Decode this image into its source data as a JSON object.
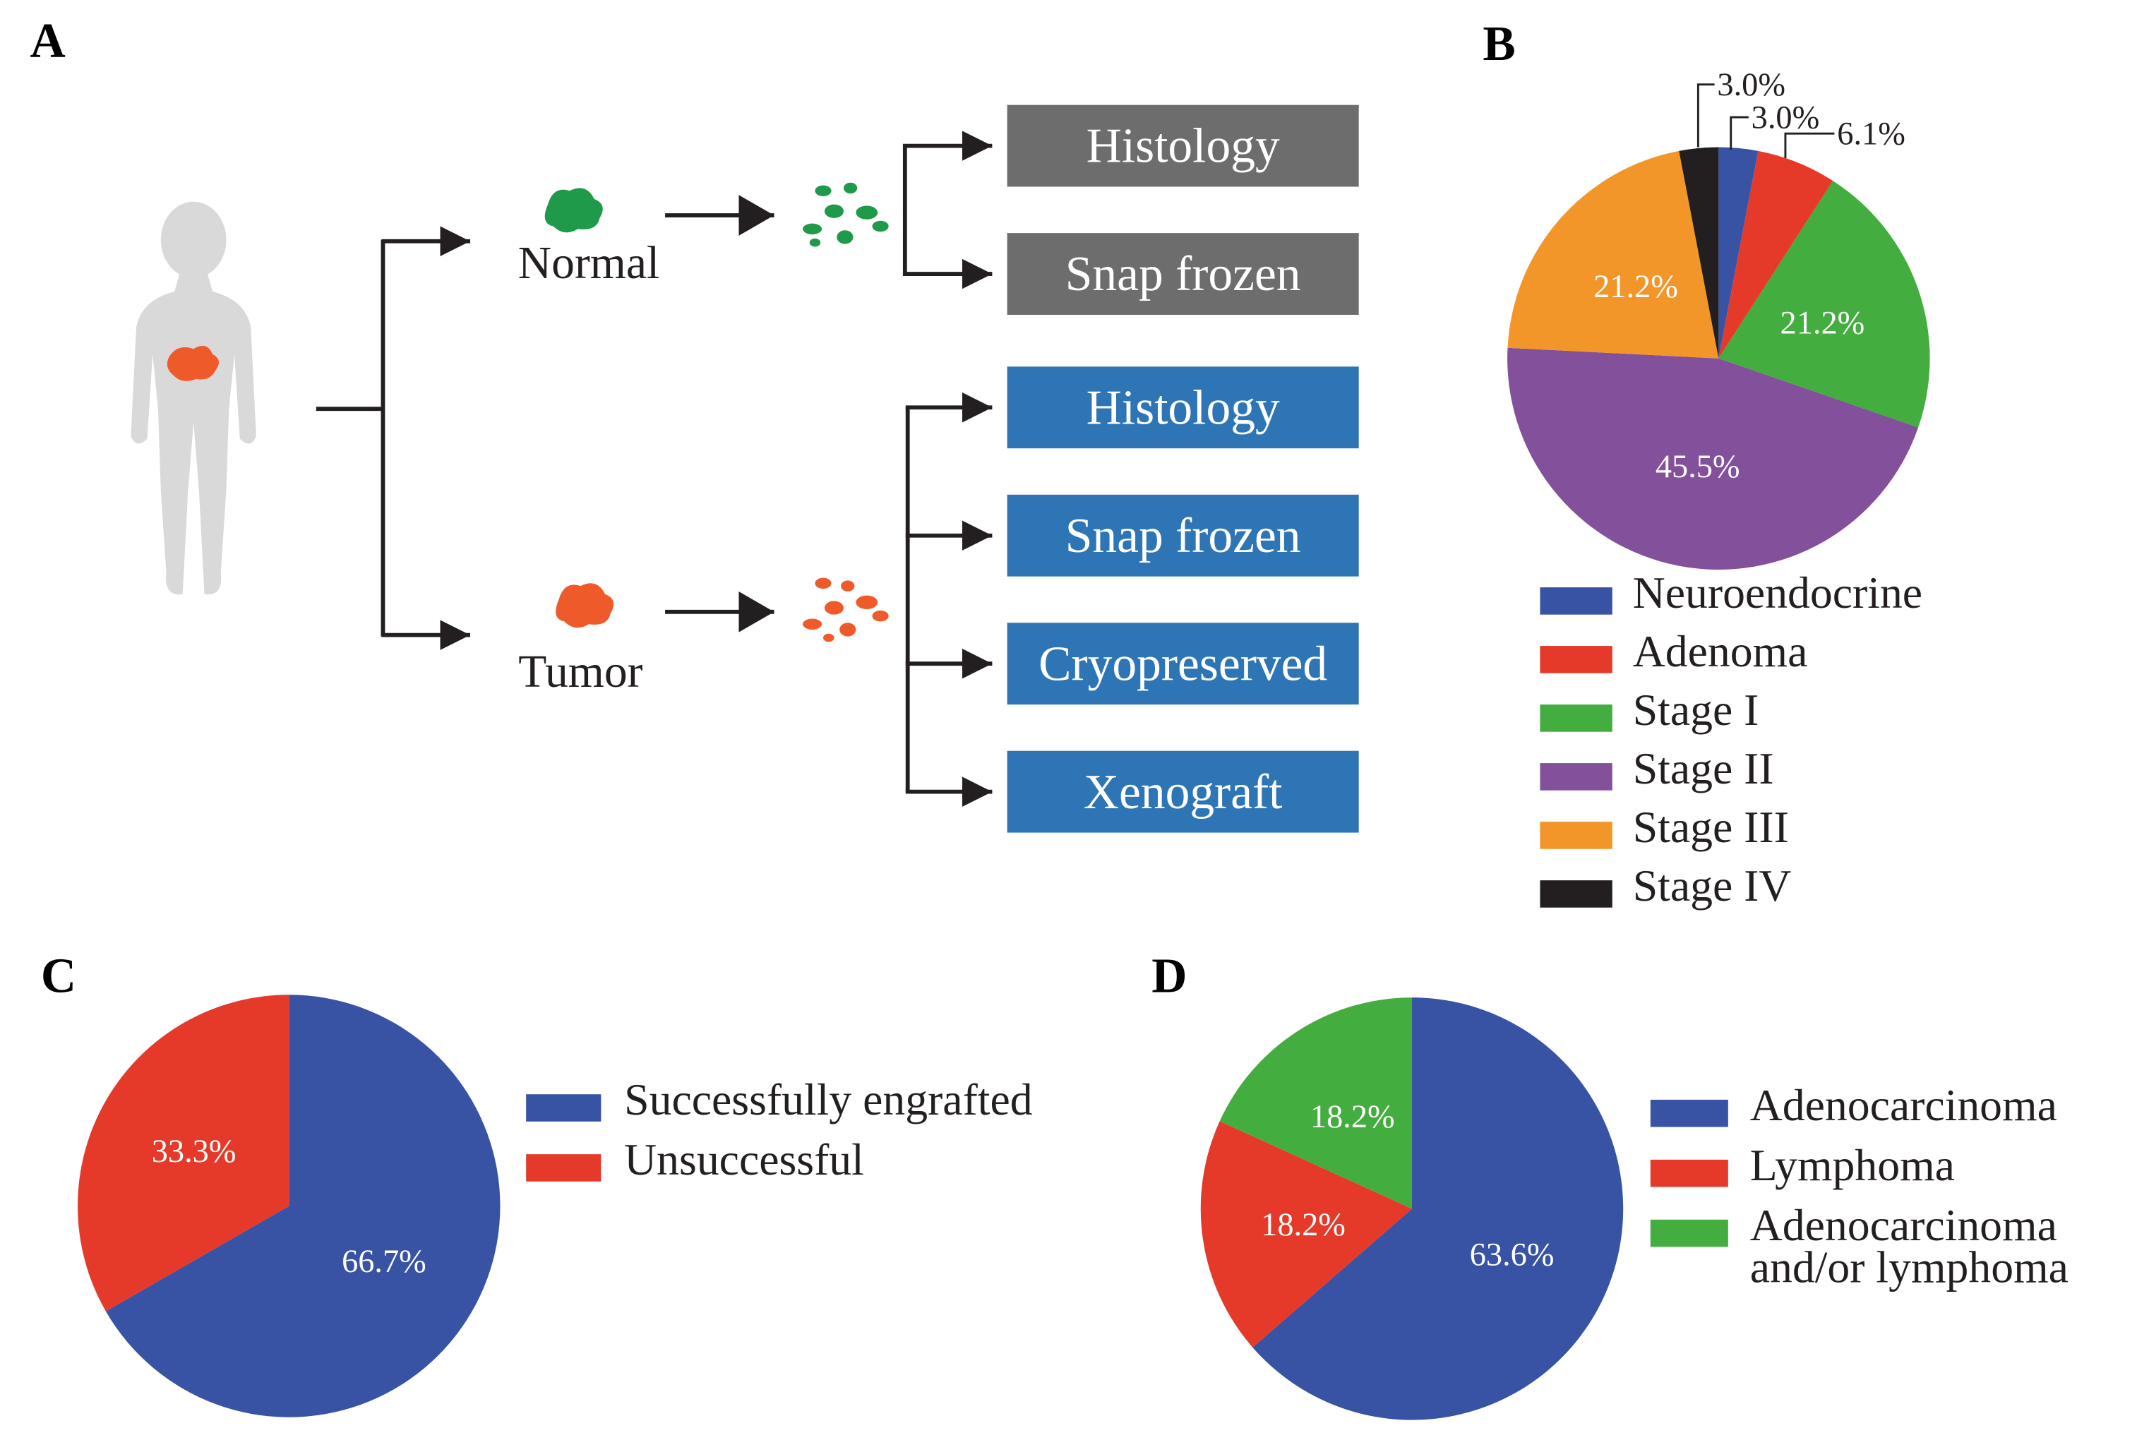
{
  "panel_labels": [
    "A",
    "B",
    "C",
    "D"
  ],
  "diagram": {
    "normal": "Normal",
    "tumor": "Tumor",
    "normal_outputs": [
      "Histology",
      "Snap frozen"
    ],
    "tumor_outputs": [
      "Histology",
      "Snap frozen",
      "Cryopreserved",
      "Xenograft"
    ]
  },
  "chart_data": [
    {
      "type": "pie",
      "categories": [
        "Neuroendocrine",
        "Adenoma",
        "Stage I",
        "Stage II",
        "Stage III",
        "Stage IV"
      ],
      "values": [
        3.0,
        6.1,
        21.2,
        45.5,
        21.2,
        3.0
      ],
      "value_labels": [
        "3.0%",
        "6.1%",
        "21.2%",
        "45.5%",
        "21.2%",
        "3.0%"
      ],
      "colors": [
        "#3953a4",
        "#e53a2a",
        "#44ad3f",
        "#83509c",
        "#f2962a",
        "#231f20"
      ]
    },
    {
      "type": "pie",
      "categories": [
        "Successfully engrafted",
        "Unsuccessful"
      ],
      "values": [
        66.7,
        33.3
      ],
      "value_labels": [
        "66.7%",
        "33.3%"
      ],
      "colors": [
        "#3953a4",
        "#e53a2a"
      ]
    },
    {
      "type": "pie",
      "categories": [
        "Adenocarcinoma",
        "Lymphoma",
        "Adenocarcinoma and/or lymphoma"
      ],
      "values": [
        63.6,
        18.2,
        18.2
      ],
      "value_labels": [
        "63.6%",
        "18.2%",
        "18.2%"
      ],
      "colors": [
        "#3953a4",
        "#e53a2a",
        "#44ad3f"
      ]
    }
  ]
}
